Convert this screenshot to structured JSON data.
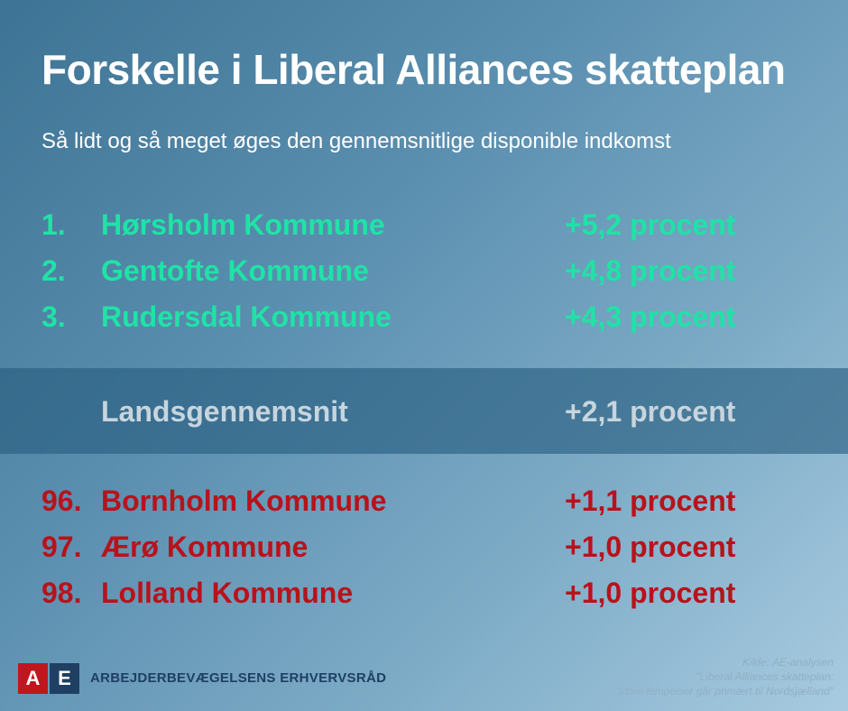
{
  "header": {
    "title": "Forskelle i Liberal Alliances skatteplan",
    "subtitle": "Så lidt og så meget øges den gennemsnitlige disponible indkomst"
  },
  "top": [
    {
      "rank": "1.",
      "name": "Hørsholm Kommune",
      "value": "+5,2 procent"
    },
    {
      "rank": "2.",
      "name": "Gentofte Kommune",
      "value": "+4,8 procent"
    },
    {
      "rank": "3.",
      "name": "Rudersdal Kommune",
      "value": "+4,3 procent"
    }
  ],
  "average": {
    "label": "Landsgennemsnit",
    "value": "+2,1 procent"
  },
  "bottom": [
    {
      "rank": "96.",
      "name": "Bornholm Kommune",
      "value": "+1,1 procent"
    },
    {
      "rank": "97.",
      "name": "Ærø Kommune",
      "value": "+1,0 procent"
    },
    {
      "rank": "98.",
      "name": "Lolland Kommune",
      "value": "+1,0 procent"
    }
  ],
  "logo": {
    "a": "A",
    "e": "E",
    "text": "ARBEJDERBEVÆGELSENS ERHVERVSRÅD"
  },
  "source": {
    "line1": "Kilde: AE-analysen",
    "line2": "\"Liberal Alliances skatteplan:",
    "line3": "Store lempelser går primært til Nordsjælland\""
  },
  "colors": {
    "top": "#1fe3a6",
    "bottom": "#b8121b",
    "average": "#c7d5de"
  }
}
